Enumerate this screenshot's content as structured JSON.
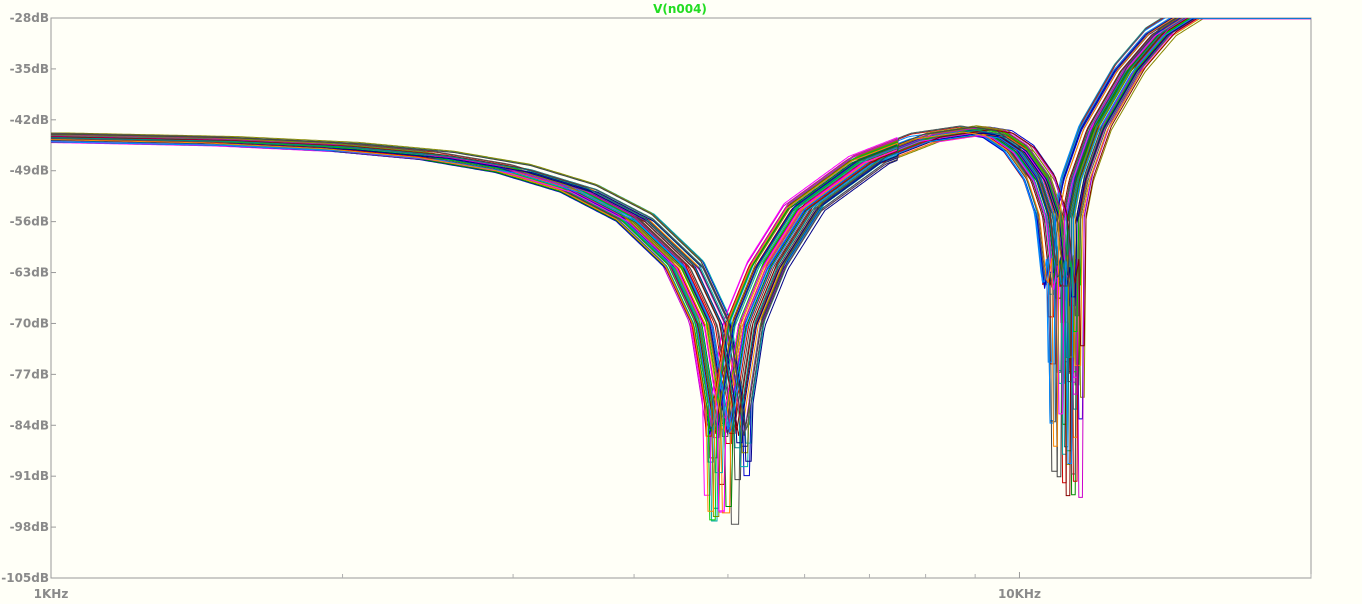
{
  "chart_data": {
    "type": "line",
    "title": "V(n004)",
    "title_color": "#22dd22",
    "xscale": "log",
    "xlim": [
      1000,
      20000
    ],
    "ylim": [
      -105,
      -28
    ],
    "xlabel": "",
    "ylabel": "",
    "x_tick_labels": [
      {
        "value": 1000,
        "label": "1KHz"
      },
      {
        "value": 10000,
        "label": "10KHz"
      }
    ],
    "x_minor_ticks": [
      2000,
      3000,
      4000,
      5000,
      6000,
      7000,
      8000,
      9000,
      20000
    ],
    "y_tick_labels": [
      {
        "value": -28,
        "label": "-28dB"
      },
      {
        "value": -35,
        "label": "-35dB"
      },
      {
        "value": -42,
        "label": "-42dB"
      },
      {
        "value": -49,
        "label": "-49dB"
      },
      {
        "value": -56,
        "label": "-56dB"
      },
      {
        "value": -63,
        "label": "-63dB"
      },
      {
        "value": -70,
        "label": "-70dB"
      },
      {
        "value": -77,
        "label": "-77dB"
      },
      {
        "value": -84,
        "label": "-84dB"
      },
      {
        "value": -91,
        "label": "-91dB"
      },
      {
        "value": -98,
        "label": "-98dB"
      },
      {
        "value": -105,
        "label": "-105dB"
      }
    ],
    "grid": false,
    "series_count": 60,
    "series_colors": [
      "#0000cc",
      "#cc0000",
      "#008800",
      "#cc00cc",
      "#00aaaa",
      "#888800",
      "#555555",
      "#00cc00",
      "#ff00ff",
      "#000088",
      "#880000",
      "#0088ff",
      "#008888",
      "#ff8800",
      "#444444"
    ],
    "nominal_response": {
      "x": [
        1000,
        1500,
        2000,
        2500,
        3000,
        3500,
        4000,
        4500,
        4800,
        5000,
        5200,
        5500,
        6000,
        7000,
        8000,
        9000,
        9500,
        10000,
        10500,
        10800,
        11000,
        11200,
        11500,
        12000,
        13000,
        14000,
        15000
      ],
      "y": [
        -44.5,
        -45.0,
        -45.8,
        -47.0,
        -48.8,
        -51.5,
        -55.5,
        -62,
        -70,
        -85,
        -70,
        -62,
        -54,
        -47.5,
        -44.5,
        -43.5,
        -44.0,
        -46.0,
        -50,
        -55,
        -65,
        -58,
        -50,
        -43,
        -35,
        -30,
        -27.5
      ]
    },
    "dip_1": {
      "frequency": 5000,
      "deepest_value": -99.5
    },
    "dip_2": {
      "frequency": 11200,
      "deepest_value": -97.5
    }
  }
}
